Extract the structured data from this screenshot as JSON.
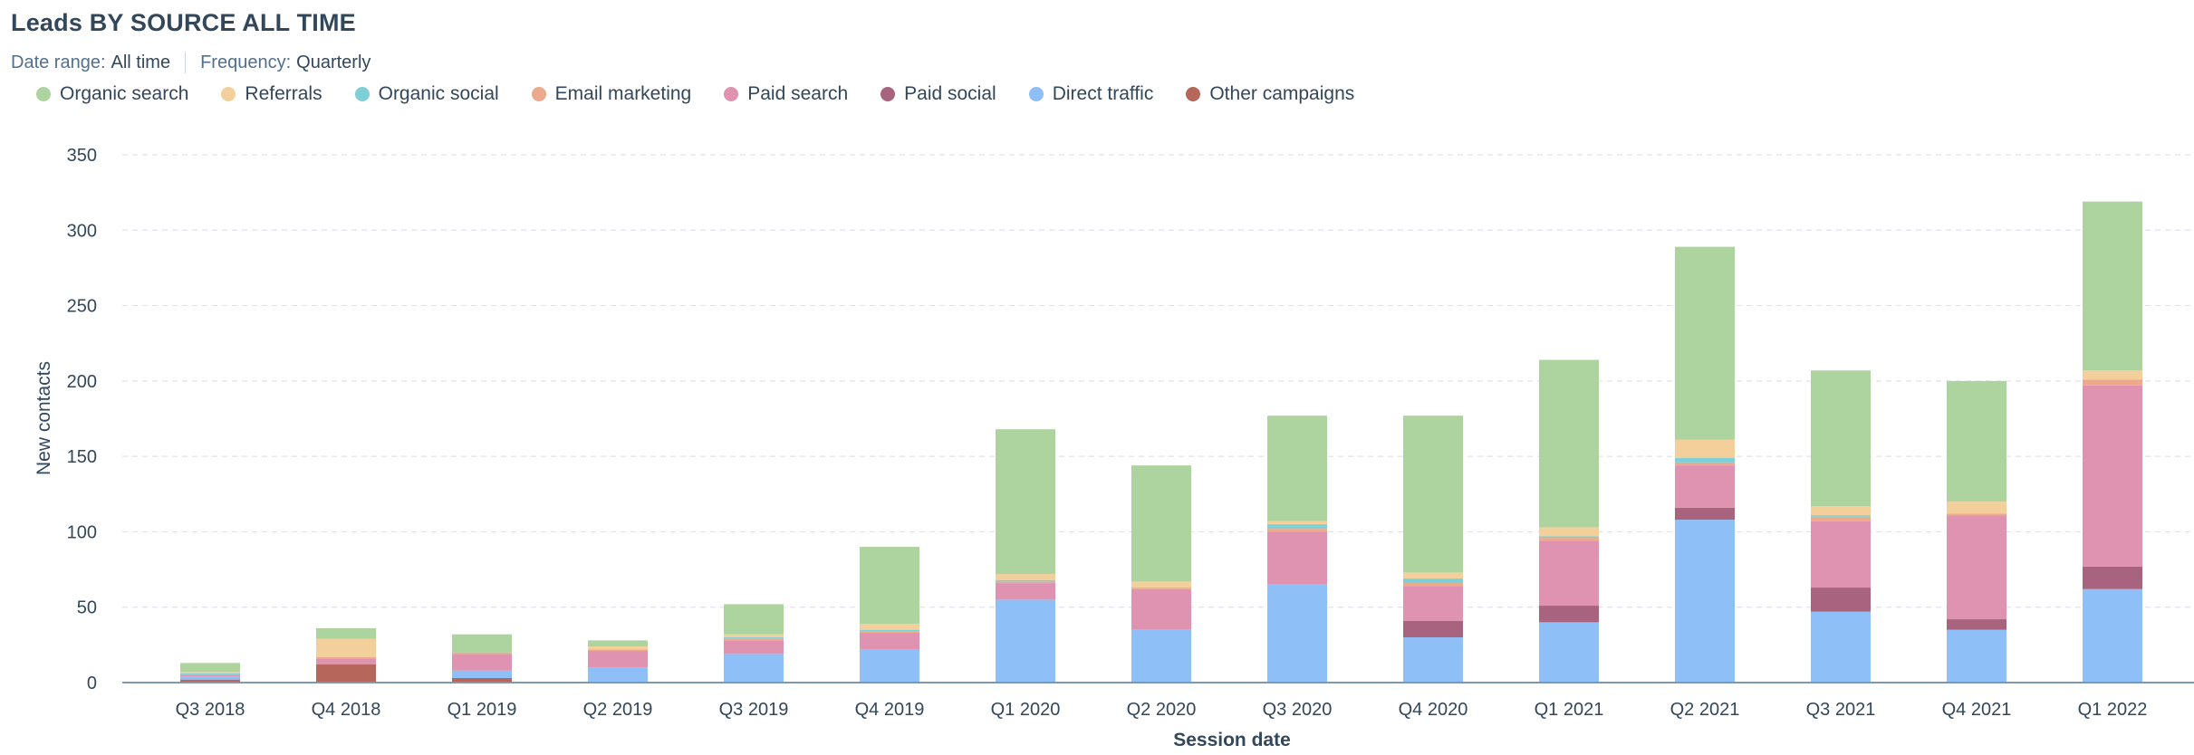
{
  "header": {
    "title": "Leads BY SOURCE ALL TIME",
    "date_range_label": "Date range:",
    "date_range_value": "All time",
    "frequency_label": "Frequency:",
    "frequency_value": "Quarterly"
  },
  "chart_data": {
    "type": "bar",
    "stacked": true,
    "xlabel": "Session date",
    "ylabel": "New contacts",
    "ylim": [
      0,
      350
    ],
    "yticks": [
      0,
      50,
      100,
      150,
      200,
      250,
      300,
      350
    ],
    "grid": true,
    "legend_position": "top-left",
    "categories": [
      "Q3 2018",
      "Q4 2018",
      "Q1 2019",
      "Q2 2019",
      "Q3 2019",
      "Q4 2019",
      "Q1 2020",
      "Q2 2020",
      "Q3 2020",
      "Q4 2020",
      "Q1 2021",
      "Q2 2021",
      "Q3 2021",
      "Q4 2021",
      "Q1 2022"
    ],
    "series": [
      {
        "name": "Other campaigns",
        "color": "#b4675a",
        "values": [
          2,
          12,
          3,
          0,
          0,
          0,
          0,
          0,
          0,
          0,
          0,
          0,
          0,
          0,
          0
        ]
      },
      {
        "name": "Direct traffic",
        "color": "#8fbff7",
        "values": [
          2,
          0,
          5,
          10,
          19,
          22,
          55,
          35,
          65,
          30,
          40,
          108,
          47,
          35,
          62
        ]
      },
      {
        "name": "Paid social",
        "color": "#a8637f",
        "values": [
          0,
          0,
          0,
          0,
          0,
          0,
          0,
          0,
          0,
          11,
          11,
          8,
          16,
          7,
          15
        ]
      },
      {
        "name": "Paid search",
        "color": "#df93b0",
        "values": [
          1,
          4,
          11,
          11,
          9,
          11,
          11,
          27,
          35,
          23,
          43,
          28,
          44,
          69,
          120
        ]
      },
      {
        "name": "Email marketing",
        "color": "#eda98c",
        "values": [
          0,
          1,
          1,
          1,
          1,
          1,
          1,
          1,
          2,
          2,
          2,
          2,
          3,
          1,
          4
        ]
      },
      {
        "name": "Organic social",
        "color": "#7dcfd8",
        "values": [
          1,
          0,
          0,
          0,
          1,
          1,
          1,
          0,
          3,
          3,
          1,
          3,
          1,
          0,
          0
        ]
      },
      {
        "name": "Referrals",
        "color": "#f3cf9b",
        "values": [
          1,
          12,
          0,
          2,
          2,
          4,
          4,
          4,
          2,
          4,
          6,
          12,
          6,
          8,
          6
        ]
      },
      {
        "name": "Organic search",
        "color": "#add39e",
        "values": [
          6,
          7,
          12,
          4,
          20,
          51,
          96,
          77,
          70,
          104,
          111,
          128,
          90,
          80,
          112
        ]
      }
    ],
    "legend_order": [
      "Organic search",
      "Referrals",
      "Organic social",
      "Email marketing",
      "Paid search",
      "Paid social",
      "Direct traffic",
      "Other campaigns"
    ]
  }
}
